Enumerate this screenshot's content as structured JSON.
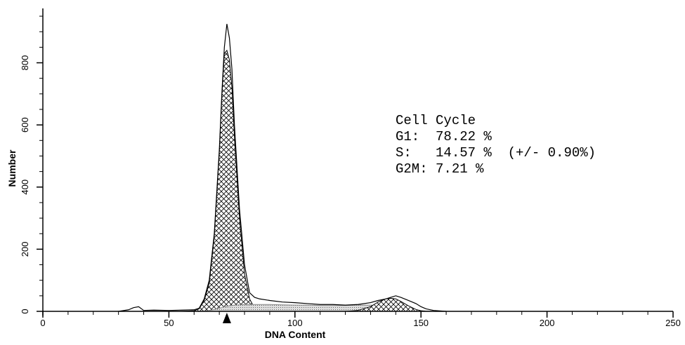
{
  "chart_data": {
    "type": "histogram-fit",
    "x_label": "DNA Content",
    "y_label": "Number",
    "xlim": [
      0,
      250
    ],
    "ylim": [
      0,
      975
    ],
    "xticks": [
      0,
      50,
      100,
      150,
      200,
      250
    ],
    "xticks_minor": [
      10,
      20,
      30,
      40,
      60,
      70,
      80,
      90,
      110,
      120,
      130,
      140,
      160,
      170,
      180,
      190,
      210,
      220,
      230,
      240
    ],
    "yticks": [
      0,
      200,
      400,
      600,
      800
    ],
    "yticks_minor": [
      50,
      100,
      150,
      250,
      300,
      350,
      450,
      500,
      550,
      650,
      700,
      750,
      850,
      900,
      950
    ],
    "x": [
      30,
      34,
      36,
      38,
      40,
      44,
      50,
      55,
      60,
      62,
      64,
      66,
      68,
      70,
      71,
      72,
      73,
      74,
      75,
      76,
      78,
      80,
      82,
      84,
      86,
      90,
      95,
      100,
      105,
      110,
      115,
      120,
      125,
      130,
      133,
      136,
      138,
      140,
      142,
      145,
      148,
      150,
      152,
      155,
      160
    ],
    "series": [
      {
        "color": "#000000",
        "pattern": "crosshatch",
        "values": [
          0,
          0,
          0,
          0,
          0,
          0,
          0,
          0,
          2,
          8,
          35,
          90,
          240,
          510,
          690,
          830,
          840,
          810,
          720,
          560,
          300,
          120,
          40,
          10,
          3,
          0,
          0,
          0,
          0,
          0,
          0,
          0,
          0,
          0,
          0,
          0,
          0,
          0,
          0,
          0,
          0,
          0,
          0,
          0,
          0
        ]
      },
      {
        "color": "#888888",
        "pattern": "dots",
        "values": [
          0,
          0,
          0,
          0,
          0,
          0,
          0,
          0,
          0,
          0,
          1,
          3,
          6,
          10,
          12,
          15,
          16,
          18,
          19,
          20,
          21,
          22,
          22,
          22,
          22,
          22,
          21,
          20,
          20,
          19,
          19,
          19,
          20,
          20,
          19,
          18,
          16,
          14,
          12,
          8,
          4,
          2,
          1,
          0,
          0
        ]
      },
      {
        "color": "#000000",
        "pattern": "crosshatch",
        "values": [
          0,
          0,
          0,
          0,
          0,
          0,
          0,
          0,
          0,
          0,
          0,
          0,
          0,
          0,
          0,
          0,
          0,
          0,
          0,
          0,
          0,
          0,
          0,
          0,
          0,
          0,
          0,
          0,
          0,
          0,
          0,
          0,
          3,
          15,
          30,
          40,
          42,
          40,
          32,
          18,
          6,
          2,
          0,
          0,
          0
        ]
      },
      {
        "color": "#000000",
        "pattern": "none",
        "values": [
          0,
          5,
          12,
          15,
          3,
          4,
          3,
          4,
          5,
          10,
          40,
          100,
          250,
          520,
          700,
          850,
          925,
          880,
          780,
          600,
          330,
          150,
          60,
          45,
          40,
          35,
          30,
          28,
          25,
          22,
          22,
          20,
          22,
          28,
          35,
          40,
          45,
          50,
          45,
          35,
          25,
          15,
          8,
          3,
          0
        ]
      }
    ],
    "marker_x": 73,
    "annotation": [
      "Cell Cycle",
      "G1:  78.22 %",
      "S:   14.57 %  (+/- 0.90%)",
      "G2M: 7.21 %"
    ]
  }
}
